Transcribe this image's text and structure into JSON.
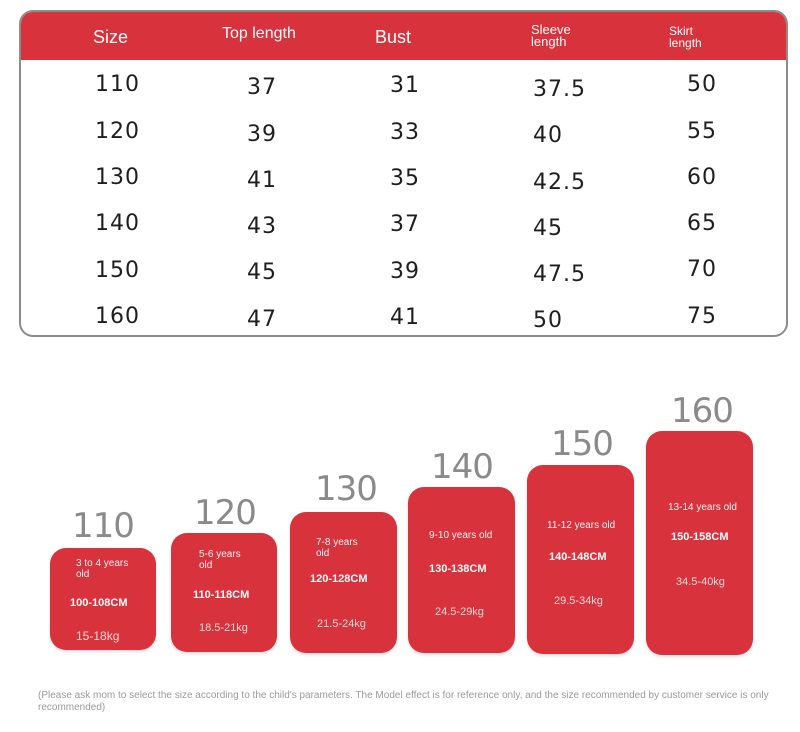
{
  "table": {
    "headers": {
      "size": "Size",
      "top_length": "Top length",
      "bust": "Bust",
      "sleeve_length": "Sleeve length",
      "skirt_length": "Skirt length"
    },
    "rows": [
      {
        "size": "110",
        "top_length": "37",
        "bust": "31",
        "sleeve_length": "37.5",
        "skirt_length": "50"
      },
      {
        "size": "120",
        "top_length": "39",
        "bust": "33",
        "sleeve_length": "40",
        "skirt_length": "55"
      },
      {
        "size": "130",
        "top_length": "41",
        "bust": "35",
        "sleeve_length": "42.5",
        "skirt_length": "60"
      },
      {
        "size": "140",
        "top_length": "43",
        "bust": "37",
        "sleeve_length": "45",
        "skirt_length": "65"
      },
      {
        "size": "150",
        "top_length": "45",
        "bust": "39",
        "sleeve_length": "47.5",
        "skirt_length": "70"
      },
      {
        "size": "160",
        "top_length": "47",
        "bust": "41",
        "sleeve_length": "50",
        "skirt_length": "75"
      }
    ]
  },
  "guide": [
    {
      "size": "110",
      "age": "3 to 4 years old",
      "height": "100-108CM",
      "weight": "15-18kg"
    },
    {
      "size": "120",
      "age": "5-6 years old",
      "height": "110-118CM",
      "weight": "18.5-21kg"
    },
    {
      "size": "130",
      "age": "7-8 years old",
      "height": "120-128CM",
      "weight": "21.5-24kg"
    },
    {
      "size": "140",
      "age": "9-10 years old",
      "height": "130-138CM",
      "weight": "24.5-29kg"
    },
    {
      "size": "150",
      "age": "11-12 years old",
      "height": "140-148CM",
      "weight": "29.5-34kg"
    },
    {
      "size": "160",
      "age": "13-14 years old",
      "height": "150-158CM",
      "weight": "34.5-40kg"
    }
  ],
  "note": "(Please ask mom to select the size according to the child's parameters. The Model effect is for reference only, and the size recommended by customer service is only recommended)",
  "colors": {
    "accent": "#d8323c",
    "border": "#8c8c8c",
    "muted_text": "#8a8a8a"
  }
}
